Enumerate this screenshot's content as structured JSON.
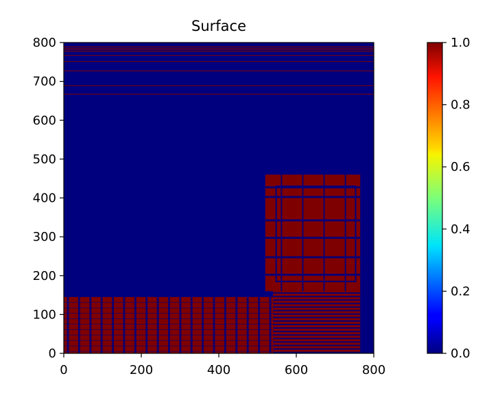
{
  "chart_data": {
    "type": "heatmap",
    "title": "Surface",
    "xlabel": "",
    "ylabel": "",
    "xlim": [
      0,
      800
    ],
    "ylim": [
      0,
      800
    ],
    "xticks": [
      "0",
      "200",
      "400",
      "600",
      "800"
    ],
    "yticks": [
      "0",
      "100",
      "200",
      "300",
      "400",
      "500",
      "600",
      "700",
      "800"
    ],
    "colormap": "jet",
    "colorbar": {
      "range": [
        0,
        1
      ],
      "ticks": [
        "0.0",
        "0.2",
        "0.4",
        "0.6",
        "0.8",
        "1.0"
      ]
    },
    "background_value": 0,
    "regions": [
      {
        "name": "left block",
        "x": [
          0,
          540
        ],
        "y": [
          0,
          145
        ],
        "value": 1
      },
      {
        "name": "right block",
        "x": [
          520,
          765
        ],
        "y": [
          160,
          460
        ],
        "value": 1
      },
      {
        "name": "lower right strip",
        "x": [
          540,
          765
        ],
        "y": [
          0,
          160
        ],
        "value": 1
      }
    ],
    "top_lines_y": [
      668,
      690,
      728,
      752,
      768,
      778,
      782,
      786,
      790
    ]
  },
  "colors": {
    "low": "#00007f",
    "high": "#7f0000"
  }
}
